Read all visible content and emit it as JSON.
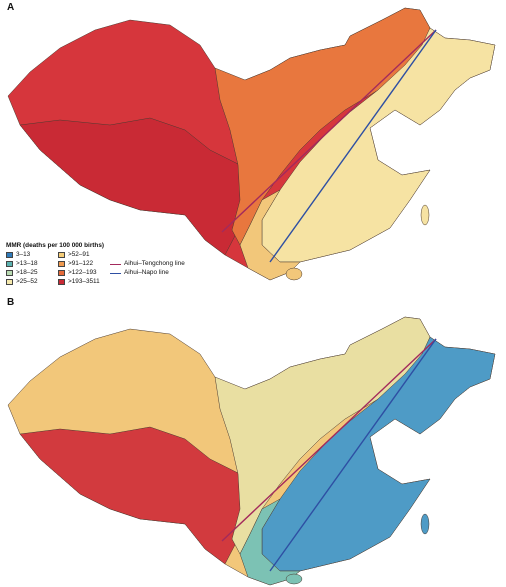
{
  "panels": [
    {
      "label": "A",
      "colors": {
        "west": "#d6363c",
        "tibet": "#c92a35",
        "belt": "#e8773e",
        "east": "#f6e3a3",
        "south": "#f2c77a"
      }
    },
    {
      "label": "B",
      "colors": {
        "west": "#f2c77a",
        "tibet": "#d23a3e",
        "belt": "#e9dfa2",
        "east": "#4e9bc6",
        "south": "#7cc2b4"
      }
    }
  ],
  "legend": {
    "title": "MMR (deaths per 100 000 births)",
    "classes": [
      {
        "label": "3–13",
        "color": "#2f7ab9"
      },
      {
        "label": ">13–18",
        "color": "#5bb2b0"
      },
      {
        "label": ">18–25",
        "color": "#b9dbb2"
      },
      {
        "label": ">25–52",
        "color": "#f5e9ad"
      },
      {
        "label": ">52–91",
        "color": "#f5cd78"
      },
      {
        "label": ">91–122",
        "color": "#f09a4f"
      },
      {
        "label": ">122–193",
        "color": "#e56a3a"
      },
      {
        "label": ">193–3511",
        "color": "#c92a35"
      }
    ],
    "lines": [
      {
        "label": "Aihui–Tengchong line",
        "color": "#a32a5c"
      },
      {
        "label": "Aihui–Napo line",
        "color": "#2e4fa3"
      }
    ]
  }
}
